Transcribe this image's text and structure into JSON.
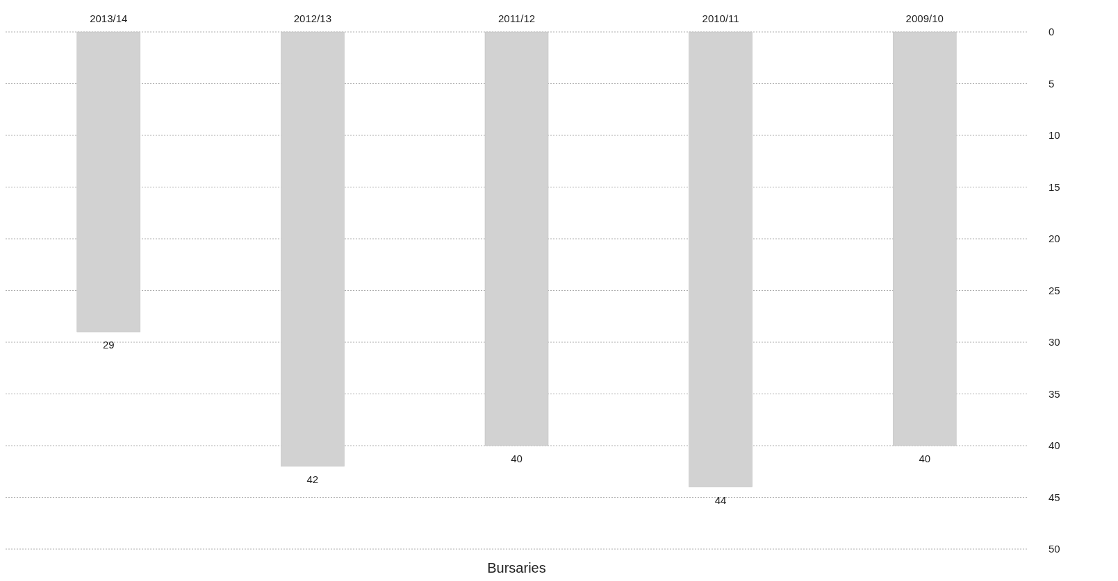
{
  "chart_data": {
    "type": "bar",
    "title": "Bursaries",
    "categories": [
      "2013/14",
      "2012/13",
      "2011/12",
      "2010/11",
      "2009/10"
    ],
    "values": [
      29,
      42,
      40,
      44,
      40
    ],
    "color": "#d2d2d2",
    "ylim": [
      50,
      0
    ],
    "yticks": [
      0,
      5,
      10,
      15,
      20,
      25,
      30,
      35,
      40,
      45,
      50
    ],
    "grid": "y",
    "data_labels": true
  }
}
